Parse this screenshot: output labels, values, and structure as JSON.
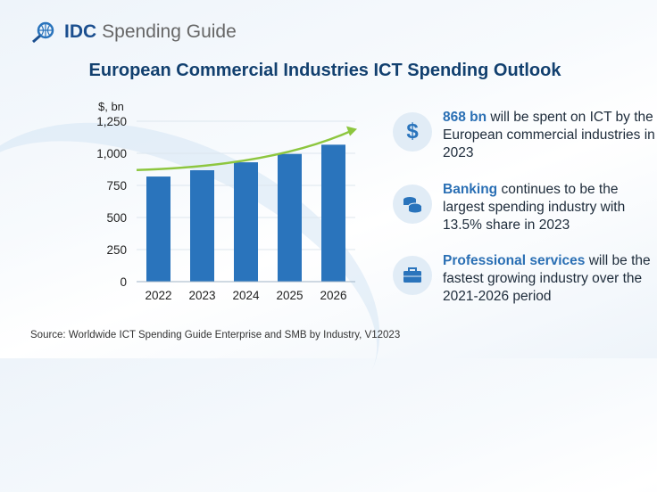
{
  "logo": {
    "brand": "IDC",
    "product": "Spending Guide"
  },
  "title": "European Commercial Industries ICT Spending Outlook",
  "chart_data": {
    "type": "bar",
    "title": "European Commercial Industries ICT Spending Outlook",
    "ylabel": "$, bn",
    "xlabel": "",
    "categories": [
      "2022",
      "2023",
      "2024",
      "2025",
      "2026"
    ],
    "values": [
      819,
      868,
      930,
      995,
      1067
    ],
    "ylim": [
      0,
      1250
    ],
    "yticks": [
      "0",
      "250",
      "500",
      "750",
      "1,000",
      "1,250"
    ],
    "ytick_values": [
      0,
      250,
      500,
      750,
      1000,
      1250
    ],
    "grid": true,
    "trend_arrow": "rising",
    "bar_color": "#2a74bc",
    "arrow_color": "#8dc63f"
  },
  "facts": [
    {
      "icon": "dollar-icon",
      "highlight": "868 bn",
      "text": " will be spent on ICT by the European commercial industries in 2023"
    },
    {
      "icon": "coins-icon",
      "highlight": "Banking",
      "text": " continues to be the largest spending industry with 13.5% share in 2023"
    },
    {
      "icon": "briefcase-icon",
      "highlight": "Professional services",
      "text": " will be the fastest growing industry over the 2021-2026 period"
    }
  ],
  "source": "Source: Worldwide ICT Spending Guide Enterprise and SMB by Industry, V12023"
}
